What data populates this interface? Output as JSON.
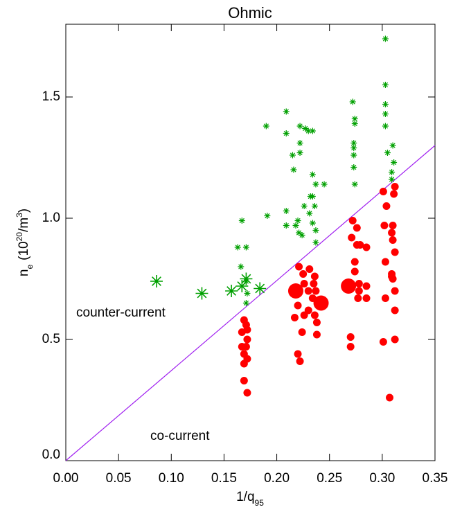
{
  "chart_data": {
    "type": "scatter",
    "title": "Ohmic",
    "xlabel": [
      "1/q",
      "95"
    ],
    "ylabel": [
      "n",
      "e",
      "(10",
      "20",
      "/m",
      "3",
      ")"
    ],
    "xlim": [
      0,
      0.35
    ],
    "ylim": [
      0,
      1.8
    ],
    "xticks": [
      {
        "value": 0,
        "label": "0.00"
      },
      {
        "value": 0.05,
        "label": "0.05"
      },
      {
        "value": 0.1,
        "label": "0.10"
      },
      {
        "value": 0.15,
        "label": "0.15"
      },
      {
        "value": 0.2,
        "label": "0.20"
      },
      {
        "value": 0.25,
        "label": "0.25"
      },
      {
        "value": 0.3,
        "label": "0.30"
      },
      {
        "value": 0.35,
        "label": "0.35"
      }
    ],
    "yticks": [
      {
        "value": 0,
        "label": "0.0"
      },
      {
        "value": 0.5,
        "label": "0.5"
      },
      {
        "value": 1,
        "label": "1.0"
      },
      {
        "value": 1.5,
        "label": "1.5"
      }
    ],
    "reference_line": {
      "x": [
        0,
        0.35
      ],
      "y": [
        0,
        1.3
      ],
      "color": "#a020f0"
    },
    "annotations": [
      {
        "text": "counter-current",
        "color": "#00a000"
      },
      {
        "text": "co-current",
        "color": "#ff0000"
      }
    ],
    "series": [
      {
        "marker": "star",
        "color": "#00a000",
        "x": [
          0.086,
          0.129,
          0.157,
          0.171,
          0.184,
          0.167,
          0.167,
          0.163,
          0.171,
          0.166,
          0.171,
          0.172,
          0.171,
          0.191,
          0.19,
          0.209,
          0.209,
          0.209,
          0.209,
          0.215,
          0.216,
          0.218,
          0.22,
          0.221,
          0.224,
          0.222,
          0.222,
          0.222,
          0.227,
          0.23,
          0.234,
          0.226,
          0.231,
          0.234,
          0.232,
          0.234,
          0.236,
          0.237,
          0.234,
          0.237,
          0.237,
          0.245,
          0.272,
          0.273,
          0.273,
          0.274,
          0.274,
          0.273,
          0.273,
          0.274,
          0.303,
          0.303,
          0.303,
          0.303,
          0.303,
          0.305,
          0.31,
          0.311,
          0.309,
          0.309
        ],
        "y": [
          0.74,
          0.69,
          0.7,
          0.75,
          0.71,
          0.72,
          0.99,
          0.88,
          0.88,
          0.8,
          0.74,
          0.69,
          0.65,
          1.01,
          1.38,
          1.44,
          1.35,
          0.97,
          1.03,
          1.26,
          1.2,
          0.97,
          0.99,
          0.94,
          0.93,
          1.27,
          1.31,
          1.38,
          1.37,
          1.36,
          1.36,
          1.05,
          1.02,
          1.18,
          1.09,
          1.09,
          1.05,
          1.14,
          0.98,
          0.95,
          0.9,
          1.14,
          1.48,
          1.31,
          1.29,
          1.41,
          1.39,
          1.26,
          1.21,
          1.14,
          1.74,
          1.55,
          1.47,
          1.43,
          1.38,
          1.27,
          1.3,
          1.23,
          1.19,
          1.16
        ],
        "sizes": [
          2,
          2,
          2,
          2,
          2,
          2,
          1,
          1,
          1,
          1,
          1,
          1,
          1,
          1,
          1,
          1,
          1,
          1,
          1,
          1,
          1,
          1,
          1,
          1,
          1,
          1,
          1,
          1,
          1,
          1,
          1,
          1,
          1,
          1,
          1,
          1,
          1,
          1,
          1,
          1,
          1,
          1,
          1,
          1,
          1,
          1,
          1,
          1,
          1,
          1,
          1,
          1,
          1,
          1,
          1,
          1,
          1,
          1,
          1,
          1
        ]
      },
      {
        "marker": "circle",
        "color": "#ff0000",
        "x": [
          0.218,
          0.242,
          0.268,
          0.169,
          0.171,
          0.172,
          0.172,
          0.167,
          0.167,
          0.169,
          0.169,
          0.169,
          0.172,
          0.171,
          0.172,
          0.221,
          0.225,
          0.226,
          0.231,
          0.236,
          0.235,
          0.237,
          0.234,
          0.22,
          0.217,
          0.224,
          0.22,
          0.222,
          0.236,
          0.238,
          0.238,
          0.23,
          0.226,
          0.23,
          0.272,
          0.276,
          0.271,
          0.276,
          0.279,
          0.285,
          0.274,
          0.274,
          0.278,
          0.278,
          0.285,
          0.277,
          0.285,
          0.27,
          0.27,
          0.301,
          0.312,
          0.311,
          0.304,
          0.302,
          0.31,
          0.309,
          0.31,
          0.312,
          0.303,
          0.309,
          0.31,
          0.312,
          0.303,
          0.309,
          0.312,
          0.301,
          0.312,
          0.307
        ],
        "y": [
          0.7,
          0.65,
          0.72,
          0.58,
          0.56,
          0.54,
          0.5,
          0.53,
          0.47,
          0.44,
          0.4,
          0.33,
          0.28,
          0.47,
          0.42,
          0.8,
          0.77,
          0.73,
          0.79,
          0.76,
          0.73,
          0.7,
          0.67,
          0.64,
          0.59,
          0.53,
          0.44,
          0.41,
          0.6,
          0.57,
          0.52,
          0.62,
          0.6,
          0.7,
          0.99,
          0.96,
          0.92,
          0.89,
          0.89,
          0.88,
          0.82,
          0.78,
          0.73,
          0.7,
          0.72,
          0.67,
          0.67,
          0.51,
          0.47,
          1.11,
          1.13,
          1.1,
          1.05,
          0.97,
          0.97,
          0.94,
          0.91,
          0.86,
          0.82,
          0.77,
          0.75,
          0.7,
          0.67,
          0.76,
          0.62,
          0.49,
          0.5,
          0.26
        ],
        "sizes": [
          2,
          2,
          2,
          1,
          1,
          1,
          1,
          1,
          1,
          1,
          1,
          1,
          1,
          1,
          1,
          1,
          1,
          1,
          1,
          1,
          1,
          1,
          1,
          1,
          1,
          1,
          1,
          1,
          1,
          1,
          1,
          1,
          1,
          1,
          1,
          1,
          1,
          1,
          1,
          1,
          1,
          1,
          1,
          1,
          1,
          1,
          1,
          1,
          1,
          1,
          1,
          1,
          1,
          1,
          1,
          1,
          1,
          1,
          1,
          1,
          1,
          1,
          1,
          1,
          1,
          1,
          1,
          1
        ]
      }
    ]
  }
}
